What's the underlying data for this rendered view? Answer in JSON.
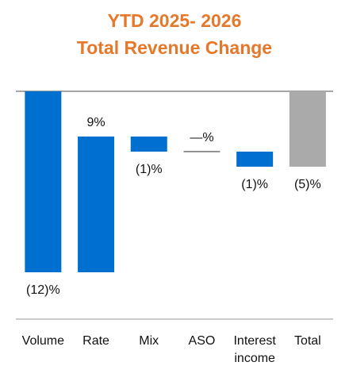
{
  "chart_data": {
    "type": "waterfall",
    "title": [
      "YTD 2025- 2026",
      "Total Revenue Change"
    ],
    "categories": [
      "Volume",
      "Rate",
      "Mix",
      "ASO",
      "Interest income",
      "Total"
    ],
    "values": [
      -12,
      9,
      -1,
      0,
      -1,
      -5
    ],
    "value_labels": [
      "(12)%",
      "9%",
      "(1)%",
      "—%",
      "(1)%",
      "(5)%"
    ],
    "color": "#0070d0",
    "total_color": "#aaaaaa"
  }
}
